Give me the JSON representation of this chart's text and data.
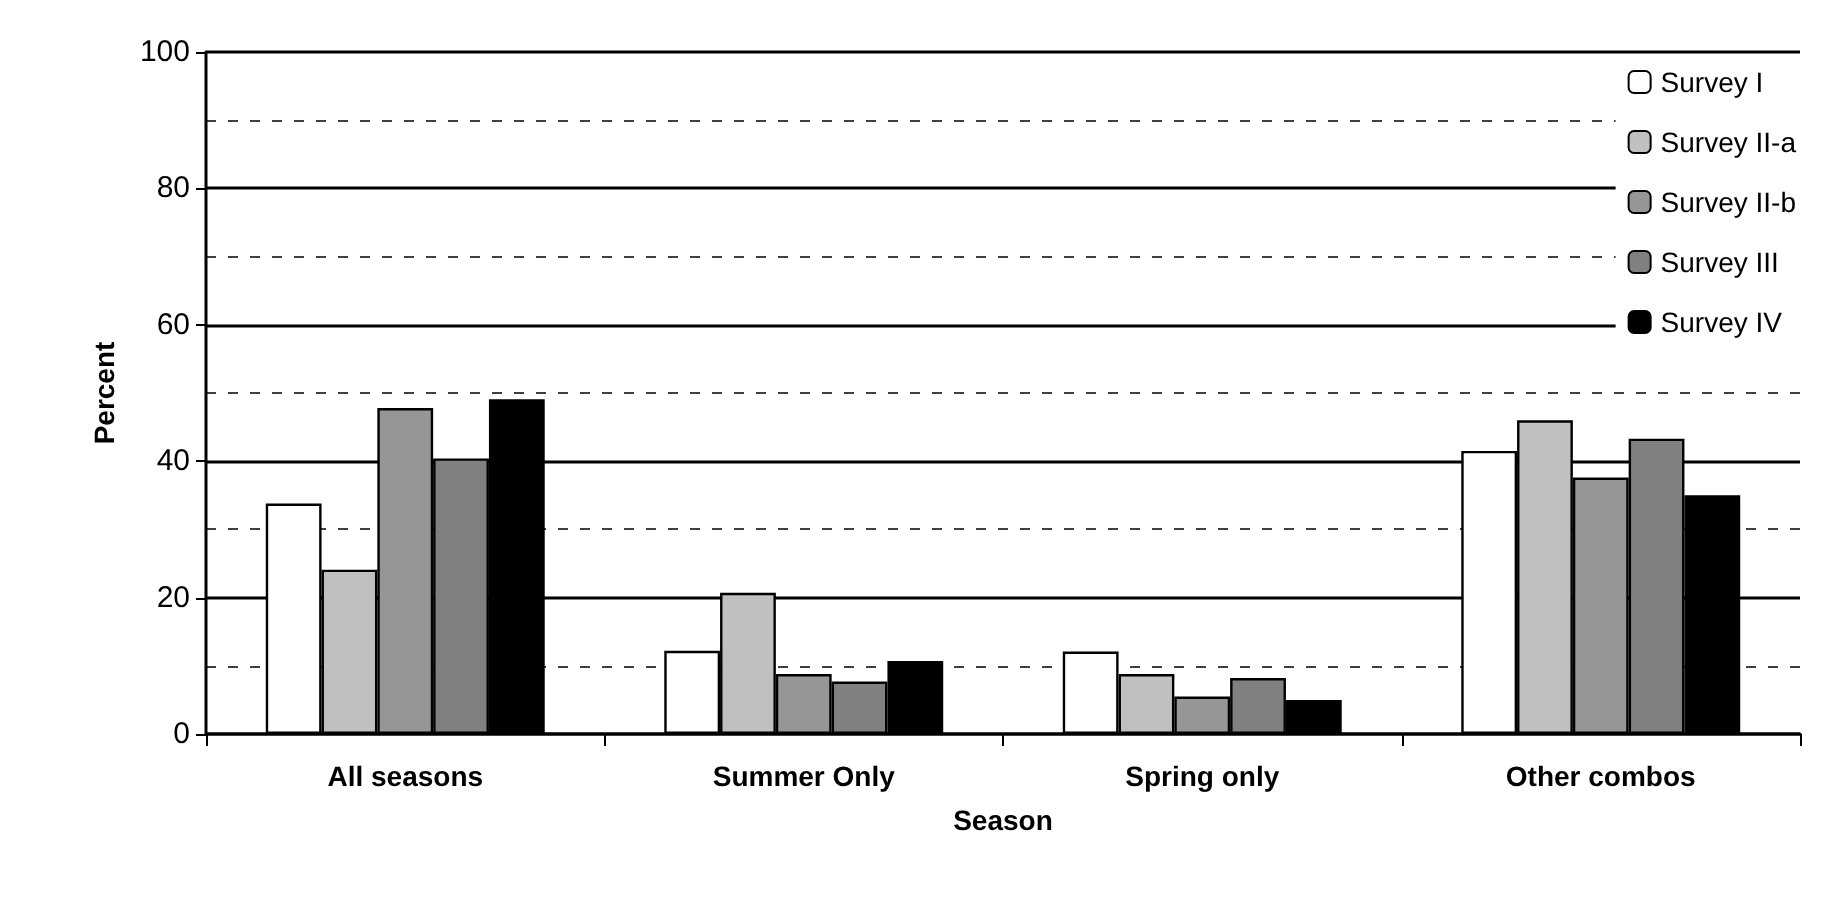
{
  "chart_data": {
    "type": "bar",
    "xlabel": "Season",
    "ylabel": "Percent",
    "categories": [
      "All seasons",
      "Summer Only",
      "Spring only",
      "Other combos"
    ],
    "series": [
      {
        "name": "Survey I",
        "color": "#ffffff",
        "values": [
          33.8,
          12.2,
          12.1,
          41.5
        ]
      },
      {
        "name": "Survey II-a",
        "color": "#c0c0c0",
        "values": [
          24.1,
          20.7,
          8.8,
          46.0
        ]
      },
      {
        "name": "Survey II-b",
        "color": "#969696",
        "values": [
          47.8,
          8.8,
          5.5,
          37.6
        ]
      },
      {
        "name": "Survey III",
        "color": "#808080",
        "values": [
          40.4,
          7.7,
          8.2,
          43.3
        ]
      },
      {
        "name": "Survey IV",
        "color": "#000000",
        "values": [
          49.1,
          10.7,
          5.0,
          35.0
        ]
      }
    ],
    "ylim": [
      0,
      100
    ],
    "yticks": [
      0,
      20,
      40,
      60,
      80,
      100
    ],
    "grid": "y",
    "legend": "top right"
  }
}
